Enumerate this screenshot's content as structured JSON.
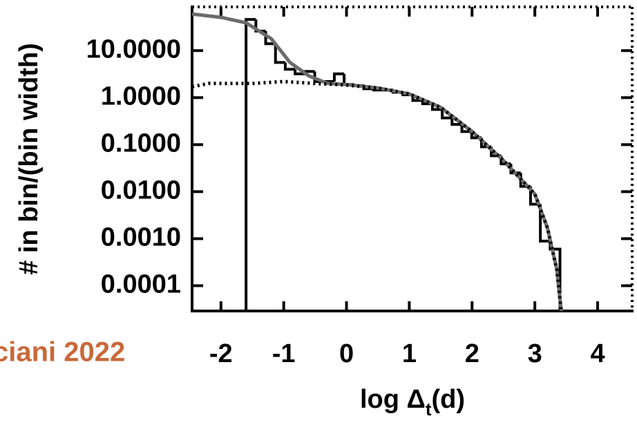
{
  "chart_data": {
    "type": "histogram",
    "y_label": "# in bin/(bin width)",
    "x_label": [
      "log Δ",
      "t",
      "(d)"
    ],
    "annotation": "ciani 2022",
    "xlim": [
      -2.46,
      4.55
    ],
    "ylim": [
      2.9e-05,
      85
    ],
    "ylog": true,
    "xticks": [
      -2,
      -1,
      0,
      1,
      2,
      3,
      4
    ],
    "yticks": [
      {
        "value": 10,
        "label": "10.0000"
      },
      {
        "value": 1,
        "label": "1.0000"
      },
      {
        "value": 0.1,
        "label": "0.1000"
      },
      {
        "value": 0.01,
        "label": "0.0100"
      },
      {
        "value": 0.001,
        "label": "0.0010"
      },
      {
        "value": 0.0001,
        "label": "0.0001"
      }
    ],
    "color": "#000000",
    "bins": [
      -1.6,
      -1.44375,
      -1.2875,
      -1.13125,
      -0.975,
      -0.81875,
      -0.6625,
      -0.50625,
      -0.35,
      -0.19375,
      -0.0375,
      0.11875,
      0.275,
      0.43125,
      0.5875,
      0.74375,
      0.9,
      1.05625,
      1.2125,
      1.36875,
      1.525,
      1.68125,
      1.8375,
      1.99375,
      2.15,
      2.30625,
      2.4625,
      2.61875,
      2.775,
      2.93125,
      3.0875,
      3.24375,
      3.4
    ],
    "values": [
      46,
      26,
      14,
      5.6,
      4.0,
      3.2,
      3.6,
      2.2,
      2.2,
      3.2,
      1.9,
      1.8,
      1.55,
      1.45,
      1.45,
      1.3,
      1.15,
      0.87,
      0.74,
      0.56,
      0.37,
      0.27,
      0.19,
      0.14,
      0.09,
      0.058,
      0.039,
      0.025,
      0.013,
      0.0054,
      0.00089,
      0.0006
    ],
    "curves": [
      {
        "color": "#6b6b6b",
        "line_style": "solid",
        "x": [
          -2.46,
          -2,
          -1.6,
          -1.2,
          -0.9,
          -0.6,
          -0.3,
          0,
          0.5,
          1,
          1.5,
          2,
          2.5,
          3,
          3.2,
          3.35,
          3.42
        ],
        "values": [
          60,
          51,
          39,
          18,
          5.6,
          2.9,
          2.0,
          1.9,
          1.6,
          1.2,
          0.62,
          0.19,
          0.046,
          0.0089,
          0.0017,
          0.00022,
          2.9e-05
        ]
      },
      {
        "color": "#000000",
        "line_style": "dotted",
        "x": [
          -2.46,
          -2.2,
          -1.5,
          -1,
          -0.5,
          0,
          0.5,
          1,
          1.5,
          2,
          2.5,
          3,
          3.2,
          3.35,
          3.42
        ],
        "values": [
          1.7,
          2.0,
          2.0,
          2.2,
          2.0,
          1.85,
          1.6,
          1.2,
          0.62,
          0.19,
          0.046,
          0.0089,
          0.0017,
          0.00022,
          2.9e-05
        ]
      }
    ]
  }
}
